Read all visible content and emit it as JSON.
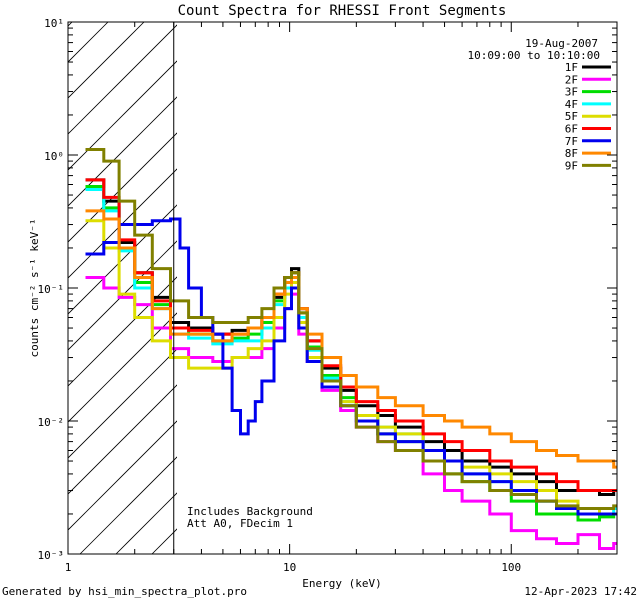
{
  "chart_data": {
    "type": "line",
    "title": "Count Spectra for RHESSI Front Segments",
    "xlabel": "Energy (keV)",
    "ylabel": "counts cm⁻² s⁻¹ keV⁻¹",
    "xscale": "log",
    "yscale": "log",
    "xlim": [
      1,
      300
    ],
    "ylim": [
      0.001,
      10
    ],
    "x_ticks": [
      {
        "value": 1,
        "label": "1"
      },
      {
        "value": 10,
        "label": "10"
      },
      {
        "value": 100,
        "label": "100"
      }
    ],
    "y_ticks": [
      {
        "value": 0.001,
        "label": "10⁻³"
      },
      {
        "value": 0.01,
        "label": "10⁻²"
      },
      {
        "value": 0.1,
        "label": "10⁻¹"
      },
      {
        "value": 1,
        "label": "10⁰"
      },
      {
        "value": 10,
        "label": "10¹"
      }
    ],
    "date": "19-Aug-2007",
    "time_range": "10:09:00 to 10:10:00",
    "hatched_region_max_energy": 3,
    "annotations": [
      "Includes Background",
      "Att A0, FDecim 1"
    ],
    "footer_left": "Generated by hsi_min_spectra_plot.pro",
    "footer_right": "12-Apr-2023 17:42",
    "series": [
      {
        "name": "1F",
        "color": "#000000",
        "points": [
          [
            1.2,
            0.65
          ],
          [
            1.45,
            0.45
          ],
          [
            1.7,
            0.22
          ],
          [
            2.0,
            0.13
          ],
          [
            2.4,
            0.085
          ],
          [
            2.9,
            0.055
          ],
          [
            3.5,
            0.05
          ],
          [
            4.5,
            0.045
          ],
          [
            5.5,
            0.048
          ],
          [
            6.5,
            0.05
          ],
          [
            7.5,
            0.06
          ],
          [
            8.5,
            0.085
          ],
          [
            9.5,
            0.12
          ],
          [
            10.2,
            0.14
          ],
          [
            11,
            0.07
          ],
          [
            12,
            0.04
          ],
          [
            14,
            0.025
          ],
          [
            17,
            0.017
          ],
          [
            20,
            0.013
          ],
          [
            25,
            0.011
          ],
          [
            30,
            0.009
          ],
          [
            40,
            0.007
          ],
          [
            50,
            0.006
          ],
          [
            60,
            0.005
          ],
          [
            80,
            0.0045
          ],
          [
            100,
            0.004
          ],
          [
            130,
            0.0035
          ],
          [
            160,
            0.003
          ],
          [
            200,
            0.003
          ],
          [
            250,
            0.0028
          ],
          [
            290,
            0.003
          ]
        ]
      },
      {
        "name": "2F",
        "color": "#ff00ff",
        "points": [
          [
            1.2,
            0.12
          ],
          [
            1.45,
            0.1
          ],
          [
            1.7,
            0.085
          ],
          [
            2.0,
            0.075
          ],
          [
            2.4,
            0.05
          ],
          [
            2.9,
            0.035
          ],
          [
            3.5,
            0.03
          ],
          [
            4.5,
            0.028
          ],
          [
            5.5,
            0.03
          ],
          [
            6.5,
            0.03
          ],
          [
            7.5,
            0.035
          ],
          [
            8.5,
            0.05
          ],
          [
            9.5,
            0.07
          ],
          [
            10.2,
            0.09
          ],
          [
            11,
            0.045
          ],
          [
            12,
            0.028
          ],
          [
            14,
            0.017
          ],
          [
            17,
            0.012
          ],
          [
            20,
            0.009
          ],
          [
            25,
            0.007
          ],
          [
            30,
            0.006
          ],
          [
            40,
            0.004
          ],
          [
            50,
            0.003
          ],
          [
            60,
            0.0025
          ],
          [
            80,
            0.002
          ],
          [
            100,
            0.0015
          ],
          [
            130,
            0.0013
          ],
          [
            160,
            0.0012
          ],
          [
            200,
            0.0014
          ],
          [
            250,
            0.0011
          ],
          [
            290,
            0.0012
          ]
        ]
      },
      {
        "name": "3F",
        "color": "#00dd00",
        "points": [
          [
            1.2,
            0.58
          ],
          [
            1.45,
            0.4
          ],
          [
            1.7,
            0.2
          ],
          [
            2.0,
            0.11
          ],
          [
            2.4,
            0.075
          ],
          [
            2.9,
            0.05
          ],
          [
            3.5,
            0.045
          ],
          [
            4.5,
            0.04
          ],
          [
            5.5,
            0.042
          ],
          [
            6.5,
            0.045
          ],
          [
            7.5,
            0.055
          ],
          [
            8.5,
            0.08
          ],
          [
            9.5,
            0.11
          ],
          [
            10.2,
            0.13
          ],
          [
            11,
            0.065
          ],
          [
            12,
            0.036
          ],
          [
            14,
            0.022
          ],
          [
            17,
            0.015
          ],
          [
            20,
            0.011
          ],
          [
            25,
            0.008
          ],
          [
            30,
            0.007
          ],
          [
            40,
            0.005
          ],
          [
            50,
            0.004
          ],
          [
            60,
            0.0035
          ],
          [
            80,
            0.003
          ],
          [
            100,
            0.0025
          ],
          [
            130,
            0.002
          ],
          [
            160,
            0.002
          ],
          [
            200,
            0.0018
          ],
          [
            250,
            0.0019
          ],
          [
            290,
            0.002
          ]
        ]
      },
      {
        "name": "4F",
        "color": "#00ffff",
        "points": [
          [
            1.2,
            0.55
          ],
          [
            1.45,
            0.38
          ],
          [
            1.7,
            0.19
          ],
          [
            2.0,
            0.1
          ],
          [
            2.4,
            0.07
          ],
          [
            2.9,
            0.045
          ],
          [
            3.5,
            0.042
          ],
          [
            4.5,
            0.038
          ],
          [
            5.5,
            0.04
          ],
          [
            6.5,
            0.04
          ],
          [
            7.5,
            0.05
          ],
          [
            8.5,
            0.075
          ],
          [
            9.5,
            0.1
          ],
          [
            10.2,
            0.12
          ],
          [
            11,
            0.06
          ],
          [
            12,
            0.034
          ],
          [
            14,
            0.021
          ],
          [
            17,
            0.014
          ],
          [
            20,
            0.011
          ],
          [
            25,
            0.009
          ],
          [
            30,
            0.008
          ],
          [
            40,
            0.006
          ],
          [
            50,
            0.005
          ],
          [
            60,
            0.004
          ],
          [
            80,
            0.0035
          ],
          [
            100,
            0.003
          ],
          [
            130,
            0.0025
          ],
          [
            160,
            0.0022
          ],
          [
            200,
            0.002
          ],
          [
            250,
            0.002
          ],
          [
            290,
            0.0022
          ]
        ]
      },
      {
        "name": "5F",
        "color": "#dddd00",
        "points": [
          [
            1.2,
            0.32
          ],
          [
            1.45,
            0.2
          ],
          [
            1.7,
            0.09
          ],
          [
            2.0,
            0.06
          ],
          [
            2.4,
            0.04
          ],
          [
            2.9,
            0.03
          ],
          [
            3.5,
            0.025
          ],
          [
            4.5,
            0.025
          ],
          [
            5.5,
            0.03
          ],
          [
            6.5,
            0.035
          ],
          [
            7.5,
            0.04
          ],
          [
            8.5,
            0.06
          ],
          [
            9.5,
            0.09
          ],
          [
            10.2,
            0.11
          ],
          [
            11,
            0.055
          ],
          [
            12,
            0.03
          ],
          [
            14,
            0.02
          ],
          [
            17,
            0.014
          ],
          [
            20,
            0.011
          ],
          [
            25,
            0.009
          ],
          [
            30,
            0.008
          ],
          [
            40,
            0.006
          ],
          [
            50,
            0.005
          ],
          [
            60,
            0.0045
          ],
          [
            80,
            0.004
          ],
          [
            100,
            0.0035
          ],
          [
            130,
            0.003
          ],
          [
            160,
            0.0025
          ],
          [
            200,
            0.0022
          ],
          [
            250,
            0.002
          ],
          [
            290,
            0.002
          ]
        ]
      },
      {
        "name": "6F",
        "color": "#ff0000",
        "points": [
          [
            1.2,
            0.65
          ],
          [
            1.45,
            0.48
          ],
          [
            1.7,
            0.23
          ],
          [
            2.0,
            0.13
          ],
          [
            2.4,
            0.08
          ],
          [
            2.9,
            0.05
          ],
          [
            3.5,
            0.048
          ],
          [
            4.5,
            0.045
          ],
          [
            5.5,
            0.045
          ],
          [
            6.5,
            0.05
          ],
          [
            7.5,
            0.06
          ],
          [
            8.5,
            0.09
          ],
          [
            9.5,
            0.12
          ],
          [
            10.2,
            0.13
          ],
          [
            11,
            0.07
          ],
          [
            12,
            0.04
          ],
          [
            14,
            0.026
          ],
          [
            17,
            0.018
          ],
          [
            20,
            0.014
          ],
          [
            25,
            0.012
          ],
          [
            30,
            0.01
          ],
          [
            40,
            0.008
          ],
          [
            50,
            0.007
          ],
          [
            60,
            0.006
          ],
          [
            80,
            0.005
          ],
          [
            100,
            0.0045
          ],
          [
            130,
            0.004
          ],
          [
            160,
            0.0035
          ],
          [
            200,
            0.003
          ],
          [
            250,
            0.003
          ],
          [
            290,
            0.003
          ]
        ]
      },
      {
        "name": "7F",
        "color": "#0000ee",
        "points": [
          [
            1.2,
            0.18
          ],
          [
            1.45,
            0.22
          ],
          [
            1.7,
            0.3
          ],
          [
            2.0,
            0.3
          ],
          [
            2.4,
            0.32
          ],
          [
            2.9,
            0.33
          ],
          [
            3.2,
            0.2
          ],
          [
            3.5,
            0.1
          ],
          [
            4.0,
            0.06
          ],
          [
            4.5,
            0.045
          ],
          [
            5.0,
            0.025
          ],
          [
            5.5,
            0.012
          ],
          [
            6.0,
            0.008
          ],
          [
            6.5,
            0.01
          ],
          [
            7.0,
            0.014
          ],
          [
            7.5,
            0.02
          ],
          [
            8.5,
            0.04
          ],
          [
            9.5,
            0.07
          ],
          [
            10.2,
            0.1
          ],
          [
            11,
            0.05
          ],
          [
            12,
            0.028
          ],
          [
            14,
            0.018
          ],
          [
            17,
            0.013
          ],
          [
            20,
            0.01
          ],
          [
            25,
            0.008
          ],
          [
            30,
            0.007
          ],
          [
            40,
            0.006
          ],
          [
            50,
            0.005
          ],
          [
            60,
            0.004
          ],
          [
            80,
            0.0035
          ],
          [
            100,
            0.003
          ],
          [
            130,
            0.0025
          ],
          [
            160,
            0.0022
          ],
          [
            200,
            0.002
          ],
          [
            250,
            0.002
          ],
          [
            290,
            0.002
          ]
        ]
      },
      {
        "name": "8F",
        "color": "#ff8800",
        "points": [
          [
            1.2,
            0.38
          ],
          [
            1.45,
            0.33
          ],
          [
            1.7,
            0.2
          ],
          [
            2.0,
            0.12
          ],
          [
            2.4,
            0.07
          ],
          [
            2.9,
            0.045
          ],
          [
            3.5,
            0.045
          ],
          [
            4.5,
            0.04
          ],
          [
            5.5,
            0.045
          ],
          [
            6.5,
            0.05
          ],
          [
            7.5,
            0.06
          ],
          [
            8.5,
            0.09
          ],
          [
            9.5,
            0.11
          ],
          [
            10.2,
            0.12
          ],
          [
            11,
            0.07
          ],
          [
            12,
            0.045
          ],
          [
            14,
            0.03
          ],
          [
            17,
            0.022
          ],
          [
            20,
            0.018
          ],
          [
            25,
            0.015
          ],
          [
            30,
            0.013
          ],
          [
            40,
            0.011
          ],
          [
            50,
            0.01
          ],
          [
            60,
            0.009
          ],
          [
            80,
            0.008
          ],
          [
            100,
            0.007
          ],
          [
            130,
            0.006
          ],
          [
            160,
            0.0055
          ],
          [
            200,
            0.005
          ],
          [
            250,
            0.005
          ],
          [
            290,
            0.0045
          ]
        ]
      },
      {
        "name": "9F",
        "color": "#808000",
        "points": [
          [
            1.2,
            1.1
          ],
          [
            1.45,
            0.9
          ],
          [
            1.7,
            0.45
          ],
          [
            2.0,
            0.25
          ],
          [
            2.4,
            0.14
          ],
          [
            2.9,
            0.08
          ],
          [
            3.5,
            0.06
          ],
          [
            4.5,
            0.055
          ],
          [
            5.5,
            0.055
          ],
          [
            6.5,
            0.06
          ],
          [
            7.5,
            0.07
          ],
          [
            8.5,
            0.1
          ],
          [
            9.5,
            0.12
          ],
          [
            10.2,
            0.13
          ],
          [
            11,
            0.065
          ],
          [
            12,
            0.035
          ],
          [
            14,
            0.02
          ],
          [
            17,
            0.013
          ],
          [
            20,
            0.009
          ],
          [
            25,
            0.007
          ],
          [
            30,
            0.006
          ],
          [
            40,
            0.005
          ],
          [
            50,
            0.004
          ],
          [
            60,
            0.0035
          ],
          [
            80,
            0.003
          ],
          [
            100,
            0.0028
          ],
          [
            130,
            0.0025
          ],
          [
            160,
            0.0023
          ],
          [
            200,
            0.0022
          ],
          [
            250,
            0.0022
          ],
          [
            290,
            0.0023
          ]
        ]
      }
    ]
  }
}
